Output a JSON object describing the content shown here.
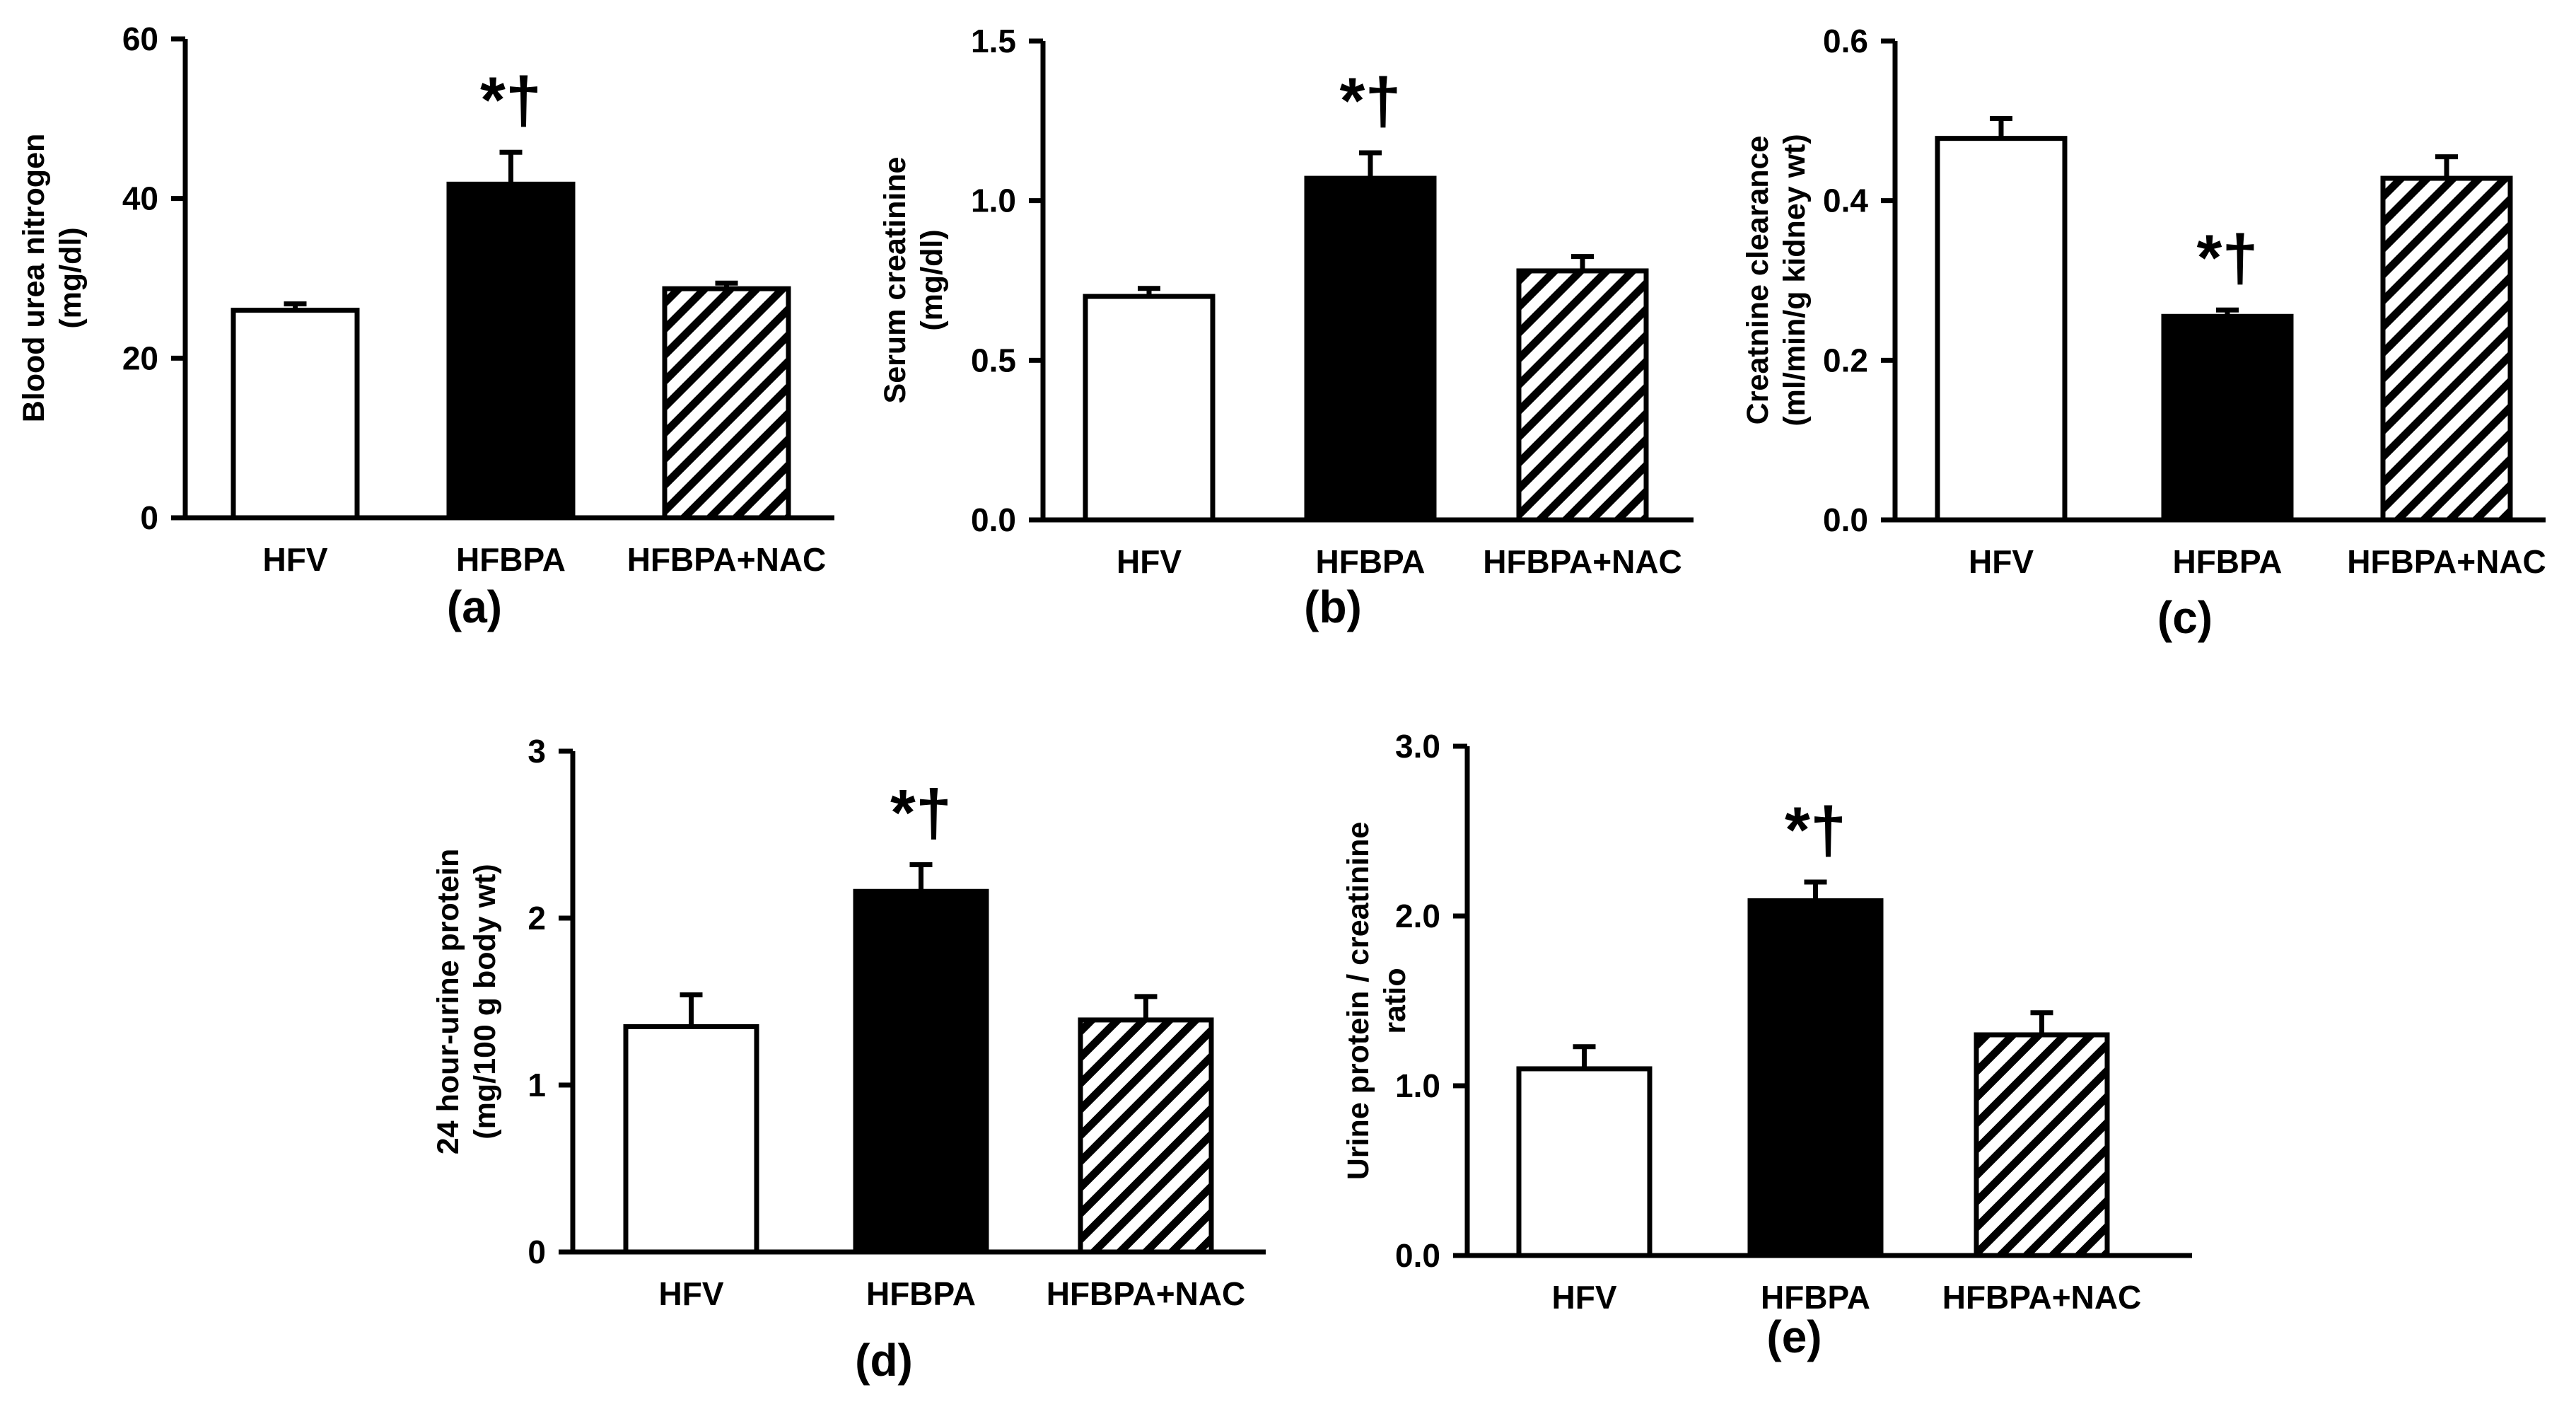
{
  "chart_data": [
    {
      "type": "bar",
      "panel_label": "(a)",
      "categories": [
        "HFV",
        "HFBPA",
        "HFBPA+NAC"
      ],
      "values": [
        26,
        41.8,
        28.7
      ],
      "errors": [
        0.8,
        4.0,
        0.7
      ],
      "fills": [
        "white",
        "black",
        "hatch"
      ],
      "ylabel_lines": [
        "Blood urea nitrogen",
        "(mg/dl)"
      ],
      "ylim": [
        0,
        60
      ],
      "ticks": [
        0,
        20,
        40,
        60
      ],
      "tick_labels": [
        "0",
        "20",
        "40",
        "60"
      ],
      "annotation": {
        "text": "*†",
        "category": "HFBPA"
      },
      "grid": false
    },
    {
      "type": "bar",
      "panel_label": "(b)",
      "categories": [
        "HFV",
        "HFBPA",
        "HFBPA+NAC"
      ],
      "values": [
        0.7,
        1.07,
        0.78
      ],
      "errors": [
        0.025,
        0.08,
        0.045
      ],
      "fills": [
        "white",
        "black",
        "hatch"
      ],
      "ylabel_lines": [
        "Serum creatinine",
        "(mg/dl)"
      ],
      "ylim": [
        0,
        1.5
      ],
      "ticks": [
        0,
        0.5,
        1.0,
        1.5
      ],
      "tick_labels": [
        "0.0",
        "0.5",
        "1.0",
        "1.5"
      ],
      "annotation": {
        "text": "*†",
        "category": "HFBPA"
      },
      "grid": false
    },
    {
      "type": "bar",
      "panel_label": "(c)",
      "categories": [
        "HFV",
        "HFBPA",
        "HFBPA+NAC"
      ],
      "values": [
        0.478,
        0.255,
        0.428
      ],
      "errors": [
        0.025,
        0.008,
        0.027
      ],
      "fills": [
        "white",
        "black",
        "hatch"
      ],
      "ylabel_lines": [
        "Creatnine clearance",
        "(ml/min/g kidney wt)"
      ],
      "ylim": [
        0,
        0.6
      ],
      "ticks": [
        0,
        0.2,
        0.4,
        0.6
      ],
      "tick_labels": [
        "0.0",
        "0.2",
        "0.4",
        "0.6"
      ],
      "annotation": {
        "text": "*†",
        "category": "HFBPA"
      },
      "grid": false
    },
    {
      "type": "bar",
      "panel_label": "(d)",
      "categories": [
        "HFV",
        "HFBPA",
        "HFBPA+NAC"
      ],
      "values": [
        1.35,
        2.16,
        1.39
      ],
      "errors": [
        0.19,
        0.16,
        0.14
      ],
      "fills": [
        "white",
        "black",
        "hatch"
      ],
      "ylabel_lines": [
        "24 hour-urine protein",
        "(mg/100 g body wt)"
      ],
      "ylim": [
        0,
        3
      ],
      "ticks": [
        0,
        1,
        2,
        3
      ],
      "tick_labels": [
        "0",
        "1",
        "2",
        "3"
      ],
      "annotation": {
        "text": "*†",
        "category": "HFBPA"
      },
      "grid": false
    },
    {
      "type": "bar",
      "panel_label": "(e)",
      "categories": [
        "HFV",
        "HFBPA",
        "HFBPA+NAC"
      ],
      "values": [
        1.1,
        2.09,
        1.3
      ],
      "errors": [
        0.13,
        0.11,
        0.13
      ],
      "fills": [
        "white",
        "black",
        "hatch"
      ],
      "ylabel_lines": [
        "Urine protein / creatinine",
        "ratio"
      ],
      "ylim": [
        0,
        3.0
      ],
      "ticks": [
        0,
        1.0,
        2.0,
        3.0
      ],
      "tick_labels": [
        "0.0",
        "1.0",
        "2.0",
        "3.0"
      ],
      "annotation": {
        "text": "*†",
        "category": "HFBPA"
      },
      "grid": false
    }
  ]
}
